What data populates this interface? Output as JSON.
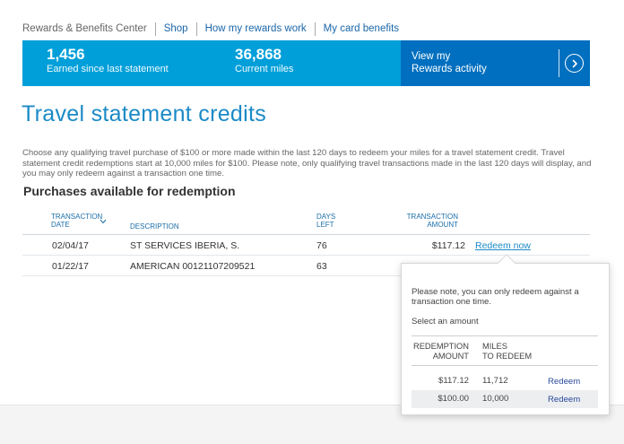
{
  "nav": {
    "center": "Rewards & Benefits Center",
    "links": [
      "Shop",
      "How my rewards work",
      "My card benefits"
    ]
  },
  "banner": {
    "stat1_value": "1,456",
    "stat1_label": "Earned since last statement",
    "stat2_value": "36,868",
    "stat2_label": "Current miles",
    "cta_line1": "View my",
    "cta_line2": "Rewards activity",
    "colors": {
      "banner": "#009fd9",
      "cta": "#006fbf"
    },
    "cta_icon": "chevron-circle-right-icon"
  },
  "page": {
    "title": "Travel statement credits",
    "intro": "Choose any qualifying travel purchase of $100 or more made within the last 120 days to redeem your miles for a travel statement credit. Travel statement credit redemptions start at 10,000 miles for $100. Please note, only qualifying travel transactions made in the last 120 days will display, and you may only redeem against a transaction one time.",
    "subhead": "Purchases available for redemption"
  },
  "table": {
    "headers": {
      "date_line1": "TRANSACTION",
      "date_line2": "DATE",
      "description": "DESCRIPTION",
      "days_line1": "DAYS",
      "days_line2": "LEFT",
      "amount_line1": "TRANSACTION",
      "amount_line2": "AMOUNT"
    },
    "rows": [
      {
        "date": "02/04/17",
        "description": "ST SERVICES IBERIA, S.",
        "days_left": "76",
        "amount": "$117.12",
        "action": "Redeem now"
      },
      {
        "date": "01/22/17",
        "description": "AMERICAN 00121107209521",
        "days_left": "63",
        "amount": "",
        "action": ""
      }
    ]
  },
  "popover": {
    "note": "Please note, you can only redeem against a transaction one time.",
    "select_label": "Select an amount",
    "col1_line1": "REDEMPTION",
    "col1_line2": "AMOUNT",
    "col2_line1": "MILES",
    "col2_line2": "TO REDEEM",
    "options": [
      {
        "amount": "$117.12",
        "miles": "11,712",
        "action": "Redeem"
      },
      {
        "amount": "$100.00",
        "miles": "10,000",
        "action": "Redeem"
      }
    ]
  }
}
